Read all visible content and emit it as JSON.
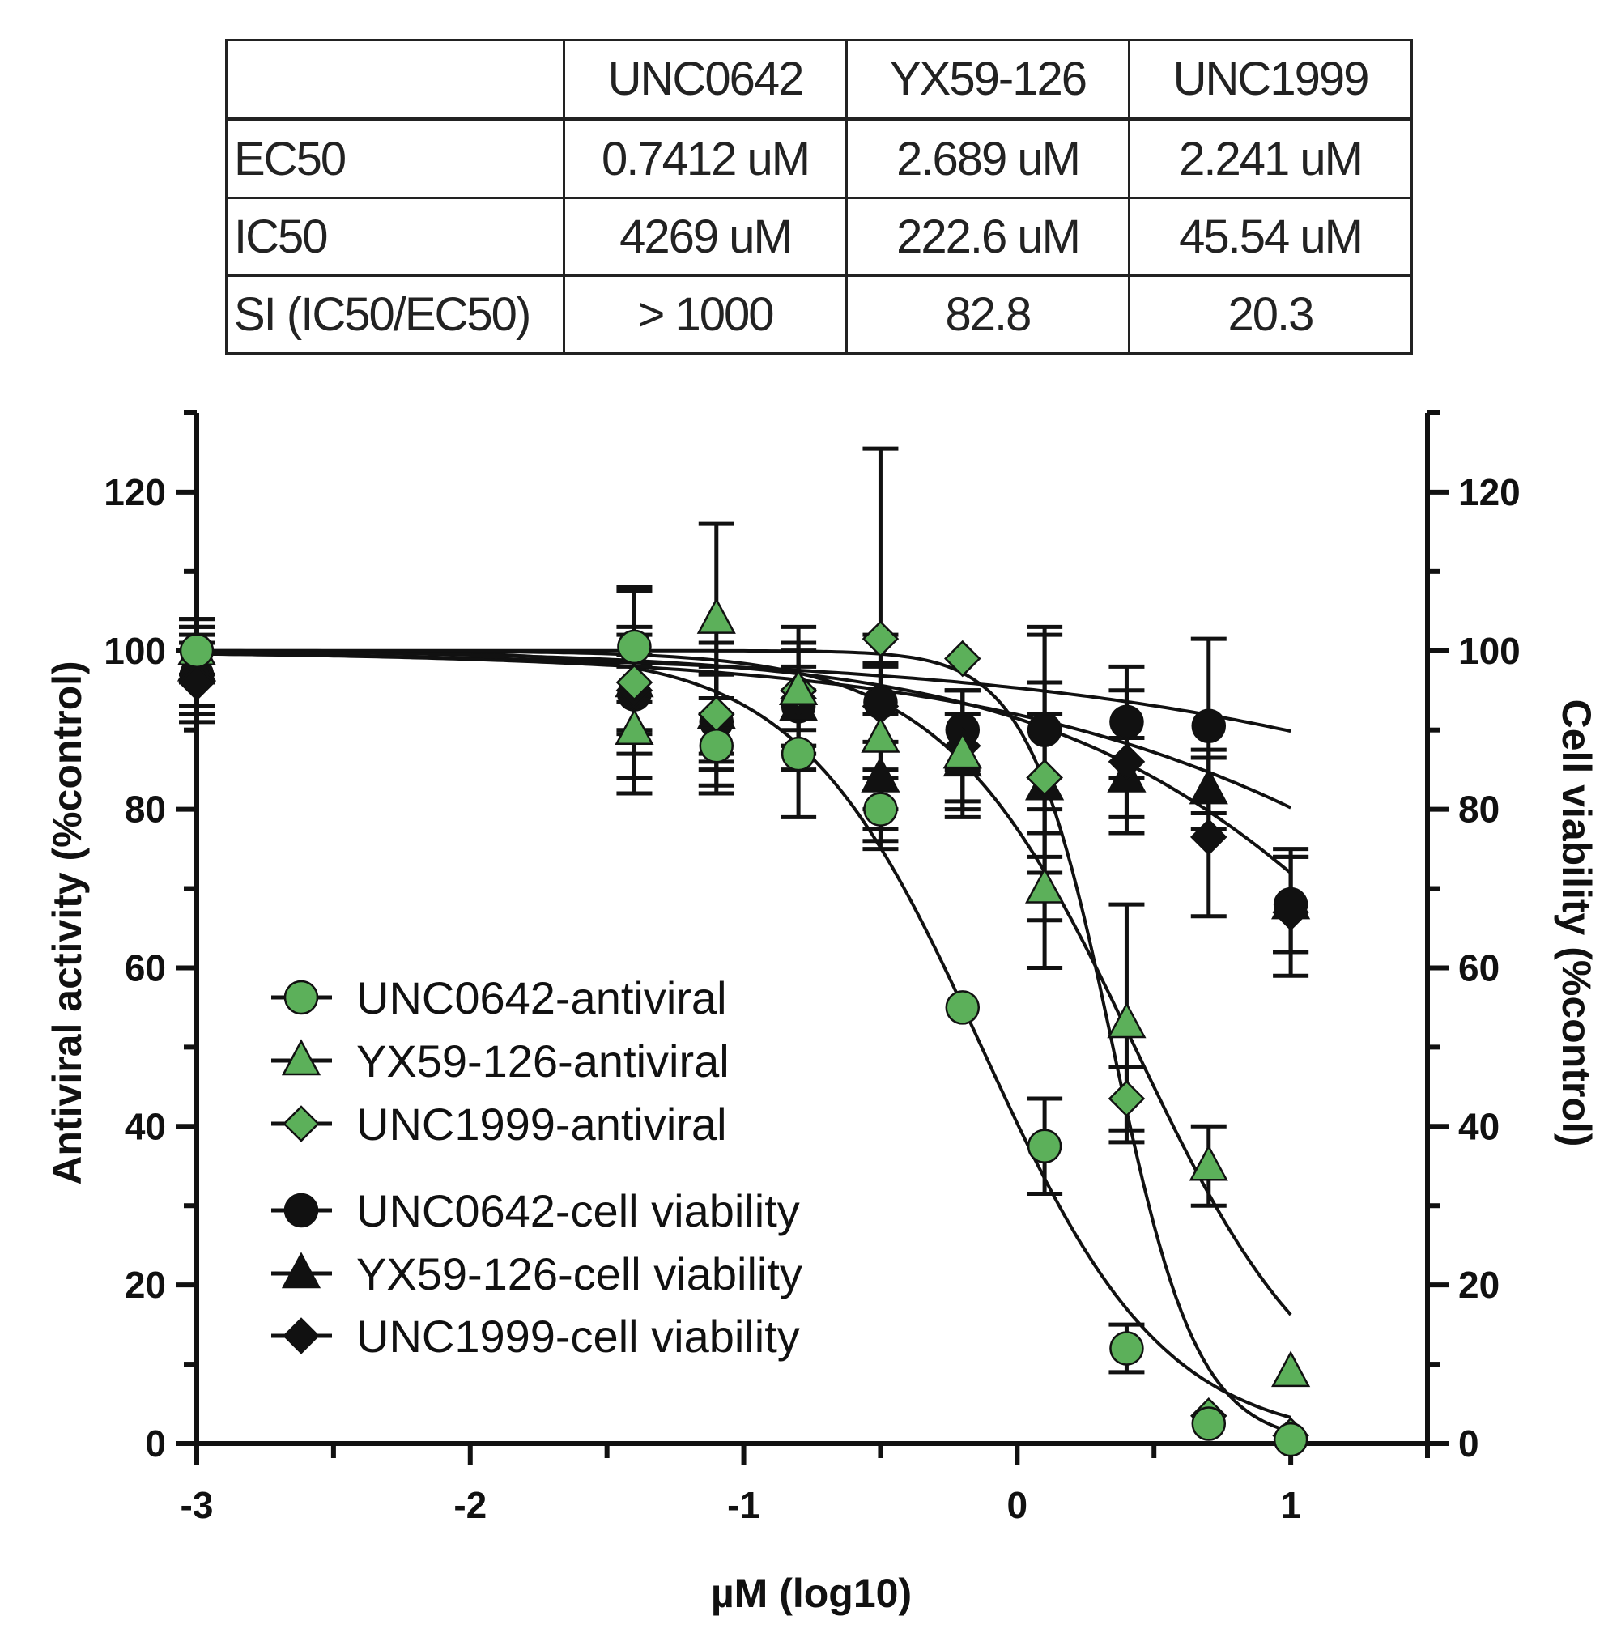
{
  "table": {
    "headers": [
      "",
      "UNC0642",
      "YX59-126",
      "UNC1999"
    ],
    "rows": [
      {
        "label": "EC50",
        "cells": [
          "0.7412 uM",
          "2.689 uM",
          "2.241 uM"
        ]
      },
      {
        "label": "IC50",
        "cells": [
          "4269 uM",
          "222.6 uM",
          "45.54 uM"
        ]
      },
      {
        "label": "SI (IC50/EC50)",
        "cells": [
          "> 1000",
          "82.8",
          "20.3"
        ]
      }
    ]
  },
  "chart_data": {
    "type": "scatter",
    "xlabel": "µM (log10)",
    "ylabel": "Antiviral activity (%control)",
    "y2label": "Cell viability (%control)",
    "xlim": [
      -3.0,
      1.5
    ],
    "ylim": [
      0,
      130
    ],
    "x_ticks": [
      -3,
      -2,
      -1,
      0,
      1
    ],
    "y_ticks": [
      0,
      20,
      40,
      60,
      80,
      100,
      120
    ],
    "grid": false,
    "legend_position": "lower-left",
    "colors": {
      "antiviral": "#5cb05a",
      "viability": "#111111",
      "line": "#111111"
    },
    "series": [
      {
        "name": "UNC0642-antiviral",
        "marker": "circle",
        "color": "#5cb05a",
        "x": [
          -3,
          -1.4,
          -1.1,
          -0.8,
          -0.5,
          -0.2,
          0.1,
          0.4,
          0.7,
          1.0
        ],
        "y": [
          100,
          100.5,
          88,
          87,
          80,
          55,
          37.5,
          12,
          2.5,
          0.5
        ],
        "err": [
          4,
          7,
          6,
          8,
          5,
          0,
          6,
          3,
          0,
          0
        ],
        "fit": {
          "top": 100,
          "bottom": 0,
          "logEC50": -0.13,
          "hill": 1.3
        }
      },
      {
        "name": "YX59-126-antiviral",
        "marker": "triangle",
        "color": "#5cb05a",
        "x": [
          -3,
          -1.4,
          -1.1,
          -0.8,
          -0.5,
          -0.2,
          0.1,
          0.4,
          0.7,
          1.0
        ],
        "y": [
          100,
          90,
          104,
          95,
          89,
          87,
          70,
          53,
          35,
          9
        ],
        "err": [
          4,
          8,
          12,
          5,
          9,
          8,
          10,
          15,
          5,
          0
        ],
        "fit": {
          "top": 100,
          "bottom": 0,
          "logEC50": 0.43,
          "hill": 1.25
        }
      },
      {
        "name": "UNC1999-antiviral",
        "marker": "diamond",
        "color": "#5cb05a",
        "x": [
          -3,
          -1.4,
          -1.1,
          -0.8,
          -0.5,
          -0.2,
          0.1,
          0.4,
          0.7,
          1.0
        ],
        "y": [
          100,
          96,
          92,
          95,
          101.5,
          99,
          84,
          43.5,
          3.5,
          1
        ],
        "err": [
          3,
          6,
          6,
          8,
          24,
          0,
          18,
          4,
          0,
          0
        ],
        "fit": {
          "top": 100,
          "bottom": 0,
          "logEC50": 0.35,
          "hill": 2.8
        }
      },
      {
        "name": "UNC0642-cell viability",
        "marker": "circle",
        "color": "#111111",
        "x": [
          -3,
          -1.4,
          -1.1,
          -0.8,
          -0.5,
          -0.2,
          0.1,
          0.4,
          0.7,
          1.0
        ],
        "y": [
          97,
          94.5,
          91,
          93,
          93.5,
          90,
          90,
          91,
          90.5,
          68
        ],
        "err": [
          5,
          5,
          6,
          5,
          5,
          5,
          13,
          7,
          11,
          6
        ],
        "fit": {
          "top": 100,
          "bottom": 0,
          "logEC50": 3.63,
          "hill": 0.36
        }
      },
      {
        "name": "YX59-126-cell viability",
        "marker": "triangle",
        "color": "#111111",
        "x": [
          -3,
          -1.4,
          -1.1,
          -0.8,
          -0.5,
          -0.2,
          0.1,
          0.4,
          0.7,
          1.0
        ],
        "y": [
          98,
          96,
          92,
          93,
          84,
          86,
          83,
          84,
          82.5,
          68
        ],
        "err": [
          5,
          12,
          5,
          8,
          8,
          6,
          9,
          5,
          5,
          6
        ],
        "fit": {
          "top": 100,
          "bottom": 0,
          "logEC50": 2.35,
          "hill": 0.45
        }
      },
      {
        "name": "UNC1999-cell viability",
        "marker": "diamond",
        "color": "#111111",
        "x": [
          -3,
          -1.4,
          -1.1,
          -0.8,
          -0.5,
          -0.2,
          0.1,
          0.4,
          0.7,
          1.0
        ],
        "y": [
          96,
          95,
          92,
          94,
          93,
          88,
          84,
          86,
          76.5,
          67
        ],
        "err": [
          5,
          8,
          9,
          6,
          9,
          7,
          12,
          9,
          10,
          8
        ],
        "fit": {
          "top": 100,
          "bottom": 0,
          "logEC50": 1.66,
          "hill": 0.62
        }
      }
    ]
  }
}
